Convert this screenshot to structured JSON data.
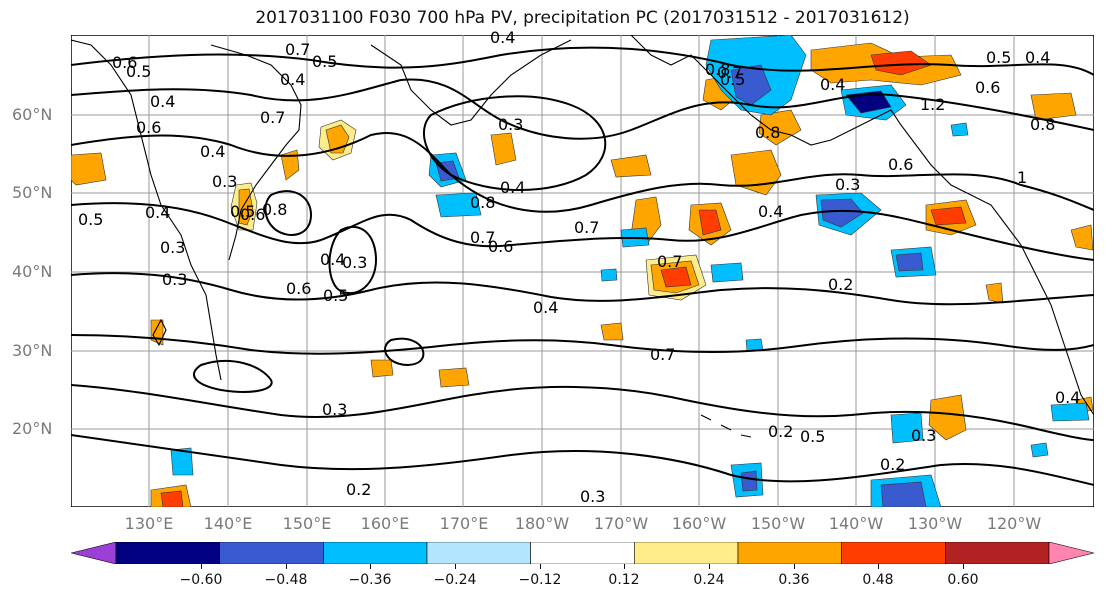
{
  "title": "2017031100 F030 700 hPa PV, precipitation PC (2017031512 - 2017031612)",
  "lat_labels": [
    "60°N",
    "50°N",
    "40°N",
    "30°N",
    "20°N"
  ],
  "lon_labels": [
    "130°E",
    "140°E",
    "150°E",
    "160°E",
    "170°E",
    "180°W",
    "170°W",
    "160°W",
    "150°W",
    "140°W",
    "130°W",
    "120°W"
  ],
  "colorbar": {
    "tick_labels": [
      "−0.60",
      "−0.48",
      "−0.36",
      "−0.24",
      "−0.12",
      "0.12",
      "0.24",
      "0.36",
      "0.48",
      "0.60"
    ],
    "colors": [
      "#9b3fd6",
      "#000080",
      "#3a5bd0",
      "#00bfff",
      "#b3e5fc",
      "#ffffff",
      "#ffec8b",
      "#ffa500",
      "#ff3d00",
      "#b22222",
      "#ff85b0"
    ]
  },
  "contour_labels": [
    "0.4",
    "0.7",
    "0.6",
    "0.5",
    "0.5",
    "0.4",
    "0.4",
    "0.6",
    "0.4",
    "0.3",
    "0.7",
    "0.3",
    "0.4",
    "0.8",
    "0.7",
    "0.6",
    "0.7",
    "0.5",
    "0.8",
    "0.6",
    "0.4",
    "0.3",
    "0.3",
    "0.6",
    "0.5",
    "0.4",
    "0.3",
    "0.5",
    "0.4",
    "0.7",
    "0.8",
    "0.7",
    "0.8",
    "0.4",
    "1.2",
    "0.6",
    "0.5",
    "0.4",
    "0.8",
    "1",
    "0.3",
    "0.2",
    "0.3",
    "0.2",
    "0.3",
    "0.5",
    "0.2",
    "0.2",
    "0.3",
    "0.4",
    "0.7",
    "0.6",
    "0.5",
    "0.4"
  ]
}
